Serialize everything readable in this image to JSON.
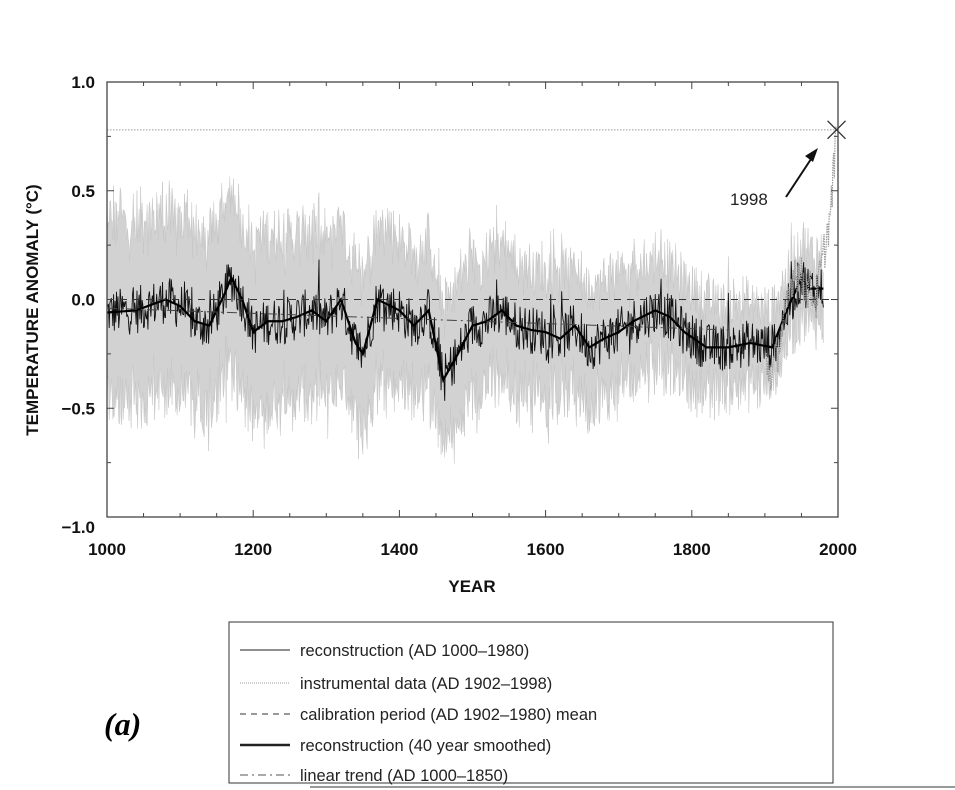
{
  "chart_data": {
    "type": "line",
    "panel_label": "(a)",
    "xlabel": "YEAR",
    "ylabel": "TEMPERATURE ANOMALY (°C)",
    "xlim": [
      1000,
      2000
    ],
    "ylim": [
      -1.0,
      1.0
    ],
    "x_ticks": [
      "1000",
      "1200",
      "1400",
      "1600",
      "1800",
      "2000"
    ],
    "y_ticks": [
      "1.0",
      "0.5",
      "0.0",
      "−0.5",
      "−1.0"
    ],
    "y_tick_values": [
      1.0,
      0.5,
      0.0,
      -0.5,
      -1.0
    ],
    "x_tick_values": [
      1000,
      1200,
      1400,
      1600,
      1800,
      2000
    ],
    "annotation": {
      "text": "1998",
      "x": 1998,
      "y": 0.78
    },
    "calibration_mean": 0.0,
    "linear_trend": {
      "x": [
        1000,
        1850
      ],
      "y": [
        -0.04,
        -0.14
      ]
    },
    "smoothed_reconstruction": {
      "x": [
        1000,
        1040,
        1080,
        1100,
        1120,
        1140,
        1160,
        1170,
        1185,
        1200,
        1220,
        1240,
        1260,
        1280,
        1300,
        1320,
        1340,
        1350,
        1370,
        1400,
        1420,
        1440,
        1460,
        1480,
        1500,
        1520,
        1540,
        1560,
        1580,
        1600,
        1620,
        1640,
        1660,
        1680,
        1700,
        1720,
        1750,
        1770,
        1790,
        1820,
        1850,
        1880,
        1910,
        1930,
        1950,
        1960,
        1980
      ],
      "y": [
        -0.06,
        -0.05,
        0.0,
        -0.03,
        -0.1,
        -0.12,
        0.02,
        0.1,
        0.0,
        -0.15,
        -0.1,
        -0.1,
        -0.08,
        -0.05,
        -0.1,
        0.0,
        -0.2,
        -0.25,
        0.0,
        -0.05,
        -0.12,
        -0.05,
        -0.37,
        -0.25,
        -0.12,
        -0.1,
        -0.05,
        -0.12,
        -0.14,
        -0.15,
        -0.18,
        -0.12,
        -0.22,
        -0.18,
        -0.15,
        -0.1,
        -0.05,
        -0.08,
        -0.15,
        -0.22,
        -0.22,
        -0.2,
        -0.22,
        -0.05,
        0.1,
        0.05,
        0.05
      ]
    },
    "instrumental": {
      "x": [
        1902,
        1910,
        1920,
        1930,
        1940,
        1950,
        1960,
        1970,
        1980,
        1990,
        1998
      ],
      "y": [
        -0.3,
        -0.35,
        -0.2,
        -0.05,
        0.15,
        0.1,
        0.05,
        0.0,
        0.2,
        0.4,
        0.78
      ]
    },
    "uncertainty_halfwidth": {
      "x": [
        1000,
        1600,
        1850,
        1980
      ],
      "y": [
        0.42,
        0.3,
        0.2,
        0.15
      ]
    },
    "legend": [
      {
        "label": "reconstruction (AD 1000–1980)",
        "style": "thin-solid"
      },
      {
        "label": "instrumental data (AD 1902–1998)",
        "style": "dotted-gray"
      },
      {
        "label": "calibration period (AD 1902–1980) mean",
        "style": "dashed"
      },
      {
        "label": "reconstruction (40 year smoothed)",
        "style": "thick-solid"
      },
      {
        "label": "linear trend (AD 1000–1850)",
        "style": "dash-dot"
      }
    ],
    "colors": {
      "band": "#d2d2d2",
      "line": "#111111",
      "instrumental": "#9a9a9a"
    }
  }
}
